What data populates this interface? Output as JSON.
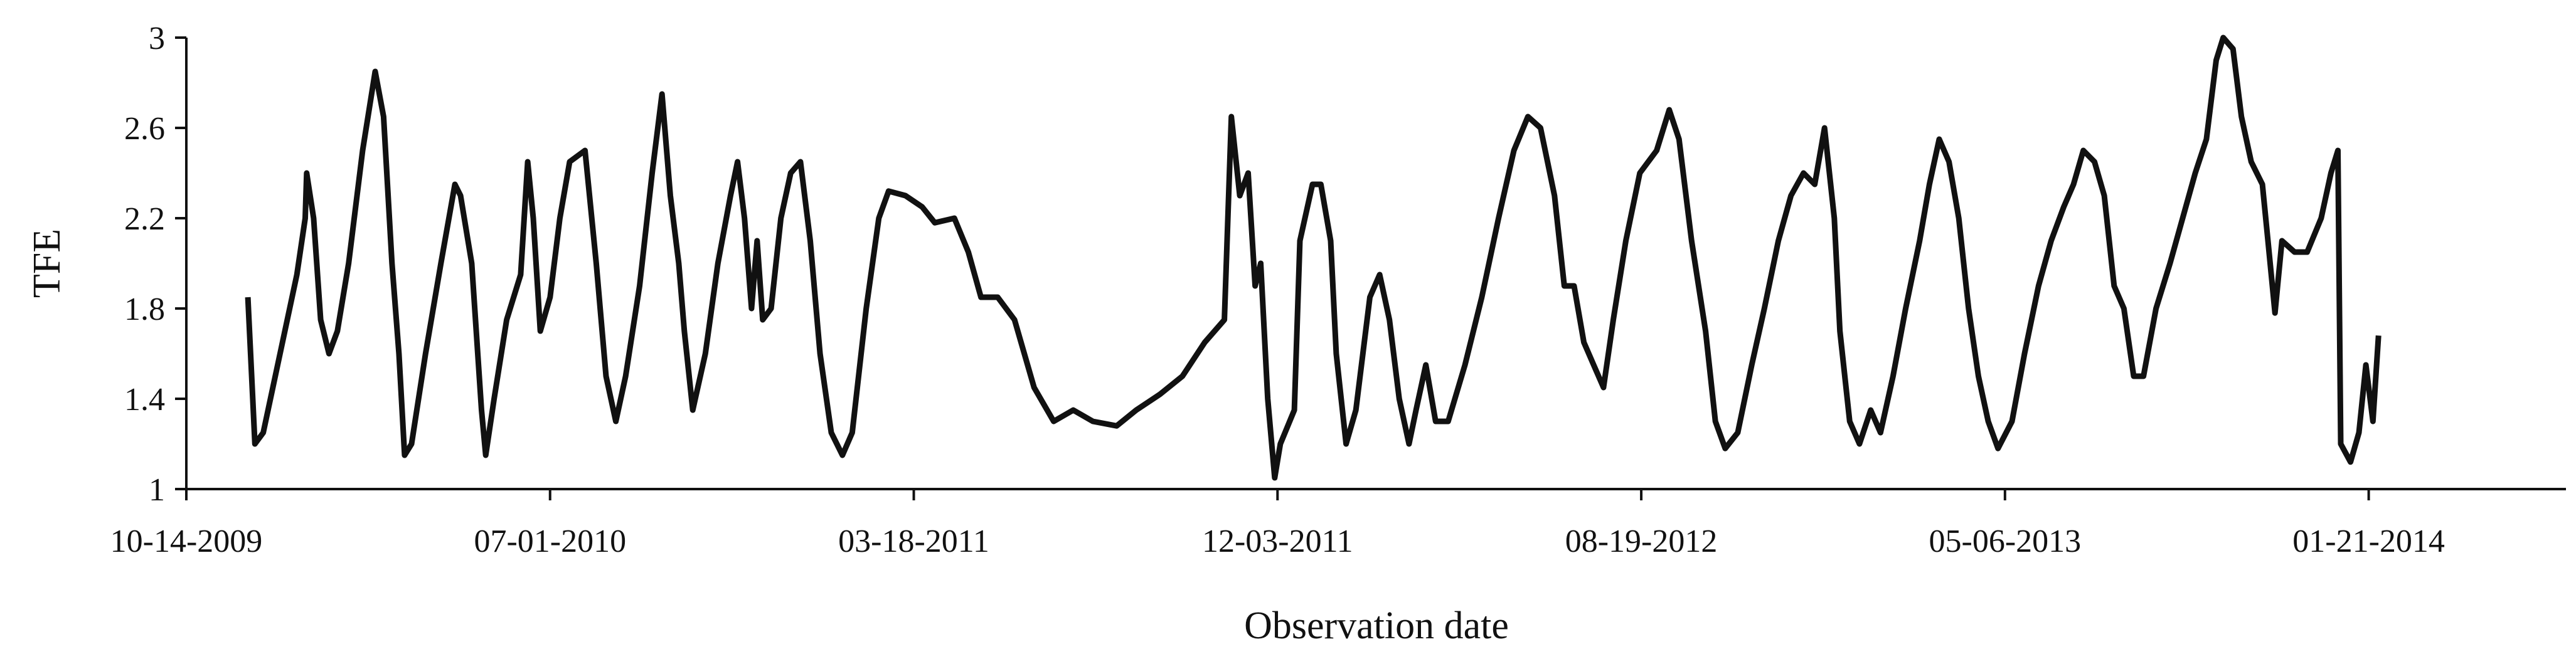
{
  "chart_data": {
    "type": "line",
    "xlabel": "Observation date",
    "ylabel": "TFE",
    "xlim": [
      "10-14-2009",
      "06-11-2014"
    ],
    "xticks": [
      "10-14-2009",
      "07-01-2010",
      "03-18-2011",
      "12-03-2011",
      "08-19-2012",
      "05-06-2013",
      "01-21-2014"
    ],
    "ylim": [
      1,
      3
    ],
    "yticks": [
      1,
      1.4,
      1.8,
      2.2,
      2.6,
      3
    ],
    "x": [
      "11-27-2009",
      "12-02-2009",
      "12-08-2009",
      "12-20-2009",
      "01-01-2010",
      "01-07-2010",
      "01-08-2010",
      "01-13-2010",
      "01-18-2010",
      "01-24-2010",
      "01-30-2010",
      "02-07-2010",
      "02-17-2010",
      "02-26-2010",
      "03-04-2010",
      "03-10-2010",
      "03-15-2010",
      "03-19-2010",
      "03-24-2010",
      "04-03-2010",
      "04-14-2010",
      "04-24-2010",
      "04-28-2010",
      "05-06-2010",
      "05-13-2010",
      "05-16-2010",
      "05-22-2010",
      "05-31-2010",
      "06-10-2010",
      "06-15-2010",
      "06-19-2010",
      "06-24-2010",
      "07-01-2010",
      "07-08-2010",
      "07-15-2010",
      "07-26-2010",
      "08-03-2010",
      "08-10-2010",
      "08-17-2010",
      "08-24-2010",
      "09-03-2010",
      "09-12-2010",
      "09-19-2010",
      "09-25-2010",
      "10-01-2010",
      "10-05-2010",
      "10-11-2010",
      "10-20-2010",
      "10-29-2010",
      "11-07-2010",
      "11-12-2010",
      "11-17-2010",
      "11-22-2010",
      "11-26-2010",
      "11-30-2010",
      "12-06-2010",
      "12-13-2010",
      "12-20-2010",
      "12-27-2010",
      "01-03-2011",
      "01-10-2011",
      "01-18-2011",
      "01-26-2011",
      "02-02-2011",
      "02-12-2011",
      "02-21-2011",
      "02-28-2011",
      "03-12-2011",
      "03-24-2011",
      "04-02-2011",
      "04-16-2011",
      "04-26-2011",
      "05-05-2011",
      "05-17-2011",
      "05-29-2011",
      "06-12-2011",
      "06-26-2011",
      "07-10-2011",
      "07-24-2011",
      "08-10-2011",
      "08-24-2011",
      "09-10-2011",
      "09-26-2011",
      "10-12-2011",
      "10-26-2011",
      "10-31-2011",
      "11-06-2011",
      "11-12-2011",
      "11-17-2011",
      "11-21-2011",
      "11-26-2011",
      "12-01-2011",
      "12-05-2011",
      "12-15-2011",
      "12-19-2011",
      "12-28-2011",
      "01-03-2012",
      "01-10-2012",
      "01-14-2012",
      "01-21-2012",
      "01-28-2012",
      "02-07-2012",
      "02-14-2012",
      "02-21-2012",
      "02-28-2012",
      "03-06-2012",
      "03-11-2012",
      "03-18-2012",
      "03-25-2012",
      "04-03-2012",
      "04-15-2012",
      "04-27-2012",
      "05-09-2012",
      "05-20-2012",
      "05-30-2012",
      "06-08-2012",
      "06-18-2012",
      "06-25-2012",
      "07-02-2012",
      "07-09-2012",
      "07-16-2012",
      "07-23-2012",
      "07-30-2012",
      "08-08-2012",
      "08-18-2012",
      "08-30-2012",
      "09-08-2012",
      "09-15-2012",
      "09-24-2012",
      "10-04-2012",
      "10-11-2012",
      "10-18-2012",
      "10-27-2012",
      "11-06-2012",
      "11-15-2012",
      "11-25-2012",
      "12-04-2012",
      "12-13-2012",
      "12-21-2012",
      "12-28-2012",
      "01-04-2013",
      "01-08-2013",
      "01-15-2013",
      "01-22-2013",
      "01-30-2013",
      "02-06-2013",
      "02-15-2013",
      "02-24-2013",
      "03-06-2013",
      "03-13-2013",
      "03-20-2013",
      "03-27-2013",
      "04-03-2013",
      "04-10-2013",
      "04-17-2013",
      "04-24-2013",
      "05-01-2013",
      "05-11-2013",
      "05-20-2013",
      "05-30-2013",
      "06-08-2013",
      "06-17-2013",
      "06-24-2013",
      "07-01-2013",
      "07-09-2013",
      "07-16-2013",
      "07-23-2013",
      "07-30-2013",
      "08-06-2013",
      "08-13-2013",
      "08-22-2013",
      "09-01-2013",
      "09-10-2013",
      "09-19-2013",
      "09-27-2013",
      "10-04-2013",
      "10-09-2013",
      "10-16-2013",
      "10-22-2013",
      "10-29-2013",
      "11-06-2013",
      "11-10-2013",
      "11-15-2013",
      "11-20-2013",
      "11-29-2013",
      "12-08-2013",
      "12-18-2013",
      "12-25-2013",
      "12-30-2013",
      "01-01-2014",
      "01-08-2014",
      "01-14-2014",
      "01-19-2014",
      "01-24-2014",
      "01-28-2014"
    ],
    "series": [
      {
        "name": "TFE",
        "color": "#111111",
        "values": [
          1.85,
          1.2,
          1.25,
          1.6,
          1.95,
          2.2,
          2.4,
          2.2,
          1.75,
          1.6,
          1.7,
          2.0,
          2.5,
          2.85,
          2.65,
          2.0,
          1.6,
          1.15,
          1.2,
          1.6,
          2.0,
          2.35,
          2.3,
          2.0,
          1.35,
          1.15,
          1.4,
          1.75,
          1.95,
          2.45,
          2.2,
          1.7,
          1.85,
          2.2,
          2.45,
          2.5,
          2.0,
          1.5,
          1.3,
          1.5,
          1.9,
          2.4,
          2.75,
          2.3,
          2.0,
          1.7,
          1.35,
          1.6,
          2.0,
          2.3,
          2.45,
          2.2,
          1.8,
          2.1,
          1.75,
          1.8,
          2.2,
          2.4,
          2.45,
          2.1,
          1.6,
          1.25,
          1.15,
          1.25,
          1.8,
          2.2,
          2.32,
          2.3,
          2.25,
          2.18,
          2.2,
          2.05,
          1.85,
          1.85,
          1.75,
          1.45,
          1.3,
          1.35,
          1.3,
          1.28,
          1.35,
          1.42,
          1.5,
          1.65,
          1.75,
          2.65,
          2.3,
          2.4,
          1.9,
          2.0,
          1.4,
          1.05,
          1.2,
          1.35,
          2.1,
          2.35,
          2.35,
          2.1,
          1.6,
          1.2,
          1.35,
          1.85,
          1.95,
          1.75,
          1.4,
          1.2,
          1.35,
          1.55,
          1.3,
          1.3,
          1.55,
          1.85,
          2.2,
          2.5,
          2.65,
          2.6,
          2.3,
          1.9,
          1.9,
          1.65,
          1.55,
          1.45,
          1.75,
          2.1,
          2.4,
          2.5,
          2.68,
          2.55,
          2.1,
          1.7,
          1.3,
          1.18,
          1.25,
          1.55,
          1.8,
          2.1,
          2.3,
          2.4,
          2.35,
          2.6,
          2.2,
          1.7,
          1.3,
          1.2,
          1.35,
          1.25,
          1.5,
          1.8,
          2.1,
          2.35,
          2.55,
          2.45,
          2.2,
          1.8,
          1.5,
          1.3,
          1.18,
          1.3,
          1.6,
          1.9,
          2.1,
          2.25,
          2.35,
          2.5,
          2.45,
          2.3,
          1.9,
          1.8,
          1.5,
          1.5,
          1.8,
          2.0,
          2.2,
          2.4,
          2.55,
          2.9,
          3.0,
          2.95,
          2.65,
          2.45,
          2.35,
          2.1,
          1.78,
          2.1,
          2.05,
          2.05,
          2.2,
          2.4,
          2.5,
          1.2,
          1.12,
          1.25,
          1.55,
          1.3,
          1.68
        ]
      }
    ]
  }
}
